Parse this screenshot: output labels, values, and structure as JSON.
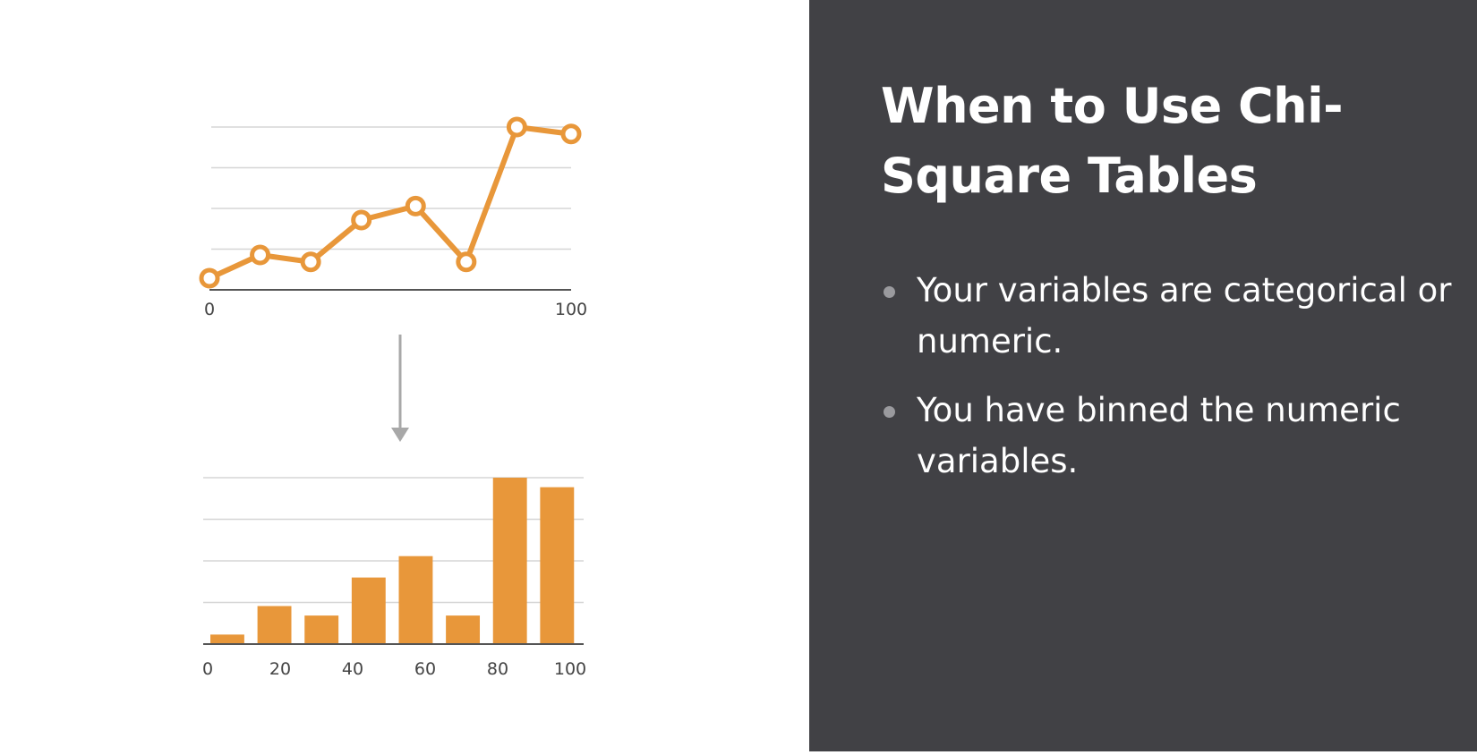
{
  "slide": {
    "title": "When to Use Chi-Square Tables",
    "bullets": [
      "Your variables are categorical or numeric.",
      "You have binned the numeric variables."
    ]
  },
  "colors": {
    "accent": "#E8973A",
    "panel_background": "#414145",
    "gridline": "#d6d6d6",
    "axis": "#555555",
    "arrow": "#a8a8a8"
  },
  "icons": {
    "transform_arrow": "arrow-down-icon"
  },
  "chart_data": [
    {
      "type": "line",
      "x": [
        0,
        14,
        28,
        42,
        57,
        71,
        85,
        100
      ],
      "y": [
        0.5,
        1.5,
        1.2,
        3.0,
        3.6,
        1.2,
        7.0,
        6.7
      ],
      "xlim": [
        0,
        100
      ],
      "ylim": [
        0,
        7
      ],
      "tick_labels": [
        "0",
        "100"
      ],
      "grid": true,
      "markers": "hollow-circle"
    },
    {
      "type": "bar",
      "values": [
        0.4,
        1.6,
        1.2,
        2.8,
        3.7,
        1.2,
        7.0,
        6.6
      ],
      "ylim": [
        0,
        7
      ],
      "tick_labels": [
        "0",
        "20",
        "40",
        "60",
        "80",
        "100"
      ],
      "grid": true
    }
  ]
}
